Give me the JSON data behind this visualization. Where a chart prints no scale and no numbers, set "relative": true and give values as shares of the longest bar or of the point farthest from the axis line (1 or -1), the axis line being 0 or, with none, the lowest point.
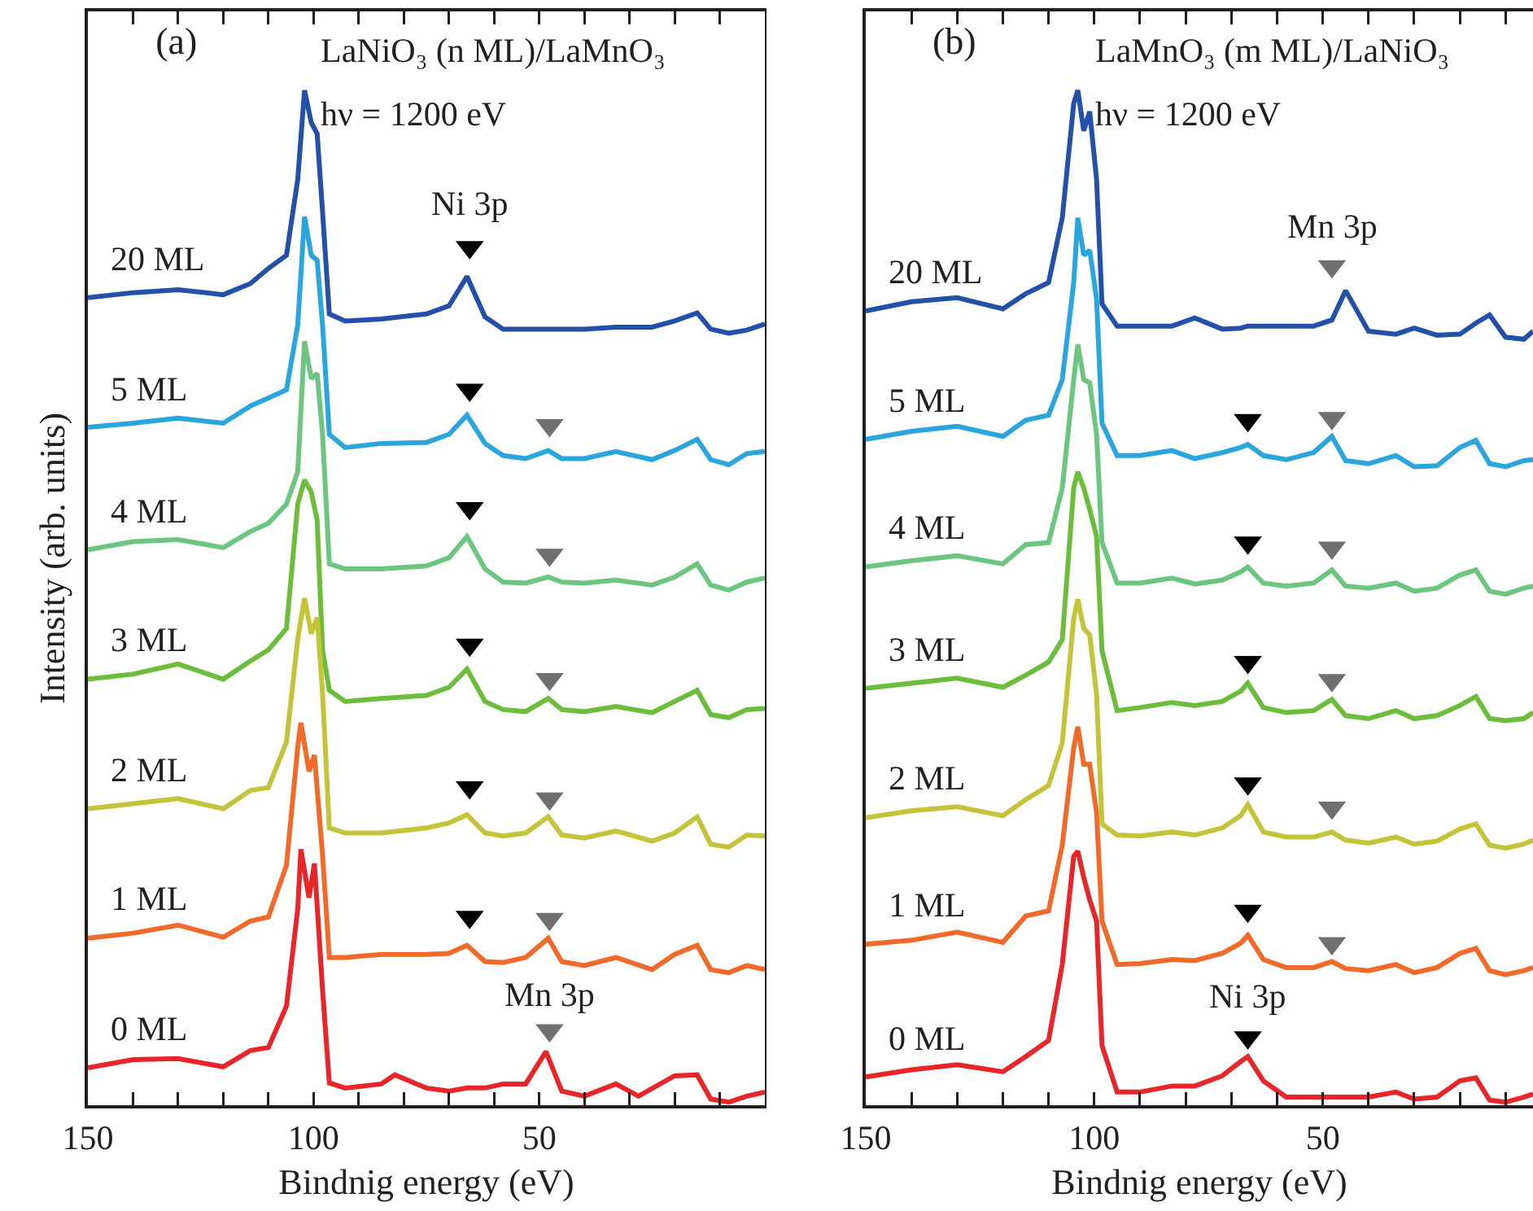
{
  "chart_data": [
    {
      "type": "line",
      "title": "(a)",
      "xlabel": "Bindnig energy (eV)",
      "ylabel": "Intensity (arb. units)",
      "relative": true,
      "grid": false,
      "line_style": "solid",
      "tick_labels": "x",
      "xlim": [
        150,
        0
      ],
      "xticks": [
        150,
        {
          "value": 140,
          "label": null
        },
        {
          "value": 130,
          "label": null
        },
        {
          "value": 120,
          "label": null
        },
        {
          "value": 110,
          "label": null
        },
        100,
        {
          "value": 90,
          "label": null
        },
        {
          "value": 80,
          "label": null
        },
        {
          "value": 70,
          "label": null
        },
        {
          "value": 60,
          "label": null
        },
        50,
        {
          "value": 40,
          "label": null
        },
        {
          "value": 30,
          "label": null
        },
        {
          "value": 20,
          "label": null
        },
        {
          "value": 10,
          "label": null
        }
      ],
      "annotations": [
        "LaNiO₃ (n ML)/LaMnO₃",
        "hν = 1200 eV",
        "Ni 3p",
        "Mn 3p"
      ],
      "x": [
        150,
        140,
        130,
        120,
        114,
        110,
        106,
        103.5,
        102,
        100.5,
        99.2,
        98,
        96.5,
        93,
        85,
        75,
        70,
        66,
        62,
        58,
        53,
        48,
        45,
        40,
        33,
        25,
        20,
        15,
        12,
        8,
        4,
        0
      ],
      "series": [
        {
          "name": "20 ML",
          "color": "#2350a8",
          "values": [
            0.795,
            0.8,
            0.803,
            0.798,
            0.809,
            0.824,
            0.837,
            0.912,
            1,
            0.968,
            0.957,
            0.88,
            0.779,
            0.772,
            0.774,
            0.779,
            0.787,
            0.816,
            0.776,
            0.764,
            0.764,
            0.764,
            0.764,
            0.764,
            0.766,
            0.766,
            0.772,
            0.78,
            0.764,
            0.76,
            0.763,
            0.769
          ]
        },
        {
          "name": "5 ML",
          "color": "#2aa5dd",
          "values": [
            0.667,
            0.671,
            0.676,
            0.671,
            0.688,
            0.696,
            0.704,
            0.768,
            0.875,
            0.837,
            0.832,
            0.768,
            0.66,
            0.647,
            0.651,
            0.652,
            0.66,
            0.679,
            0.651,
            0.639,
            0.636,
            0.644,
            0.636,
            0.636,
            0.643,
            0.635,
            0.644,
            0.655,
            0.635,
            0.63,
            0.641,
            0.643
          ]
        },
        {
          "name": "4 ML",
          "color": "#6cc680",
          "values": [
            0.546,
            0.554,
            0.556,
            0.548,
            0.564,
            0.572,
            0.591,
            0.623,
            0.752,
            0.715,
            0.72,
            0.66,
            0.532,
            0.527,
            0.527,
            0.53,
            0.538,
            0.559,
            0.527,
            0.514,
            0.513,
            0.519,
            0.514,
            0.513,
            0.516,
            0.511,
            0.519,
            0.532,
            0.511,
            0.506,
            0.514,
            0.518
          ]
        },
        {
          "name": "3 ML",
          "color": "#6cbd3c",
          "values": [
            0.418,
            0.423,
            0.433,
            0.418,
            0.436,
            0.447,
            0.468,
            0.591,
            0.615,
            0.603,
            0.575,
            0.447,
            0.407,
            0.396,
            0.399,
            0.402,
            0.41,
            0.428,
            0.396,
            0.388,
            0.386,
            0.399,
            0.388,
            0.386,
            0.391,
            0.385,
            0.396,
            0.407,
            0.383,
            0.38,
            0.388,
            0.389
          ]
        },
        {
          "name": "2 ML",
          "color": "#c4c43a",
          "values": [
            0.29,
            0.295,
            0.3,
            0.29,
            0.308,
            0.311,
            0.356,
            0.458,
            0.498,
            0.463,
            0.479,
            0.404,
            0.271,
            0.266,
            0.266,
            0.271,
            0.276,
            0.284,
            0.266,
            0.263,
            0.266,
            0.282,
            0.264,
            0.261,
            0.268,
            0.258,
            0.266,
            0.282,
            0.255,
            0.252,
            0.264,
            0.263
          ]
        },
        {
          "name": "1 ML",
          "color": "#f26a2a",
          "x": [
            150,
            140,
            130,
            120,
            114,
            110,
            106,
            103.5,
            102.8,
            101,
            99.8,
            98,
            96.5,
            93,
            85,
            75,
            70,
            66,
            62,
            58,
            53,
            48,
            45,
            40,
            33,
            25,
            20,
            15,
            12,
            8,
            4,
            0
          ],
          "values": [
            0.162,
            0.167,
            0.175,
            0.163,
            0.179,
            0.183,
            0.234,
            0.351,
            0.375,
            0.327,
            0.343,
            0.244,
            0.143,
            0.143,
            0.146,
            0.146,
            0.147,
            0.155,
            0.139,
            0.138,
            0.143,
            0.162,
            0.139,
            0.135,
            0.143,
            0.131,
            0.146,
            0.155,
            0.131,
            0.128,
            0.135,
            0.131
          ]
        },
        {
          "name": "0 ML",
          "color": "#e8262a",
          "x": [
            150,
            140,
            130,
            120,
            114,
            110,
            106,
            103.5,
            102.8,
            101,
            99.8,
            98,
            96.5,
            93,
            85,
            82,
            75,
            70,
            66,
            62,
            58,
            53,
            48.5,
            45,
            40,
            33,
            28,
            20,
            15,
            12,
            8,
            4,
            0
          ],
          "values": [
            0.034,
            0.042,
            0.043,
            0.035,
            0.051,
            0.054,
            0.095,
            0.191,
            0.25,
            0.202,
            0.236,
            0.111,
            0.019,
            0.014,
            0.018,
            0.027,
            0.014,
            0.011,
            0.014,
            0.014,
            0.018,
            0.018,
            0.05,
            0.011,
            0.006,
            0.018,
            0.006,
            0.026,
            0.027,
            0.003,
            0,
            0.006,
            0.01
          ]
        },
        {
          "type": "scatter",
          "marker": "triangle",
          "color": "#000000",
          "x": [
            65.4,
            65.4,
            65.4,
            65.4,
            65.4,
            65.4
          ],
          "values": [
            0.845,
            0.704,
            0.587,
            0.452,
            0.311,
            0.183
          ]
        },
        {
          "type": "scatter",
          "marker": "triangle",
          "color": "#707070",
          "x": [
            47.7,
            47.7,
            47.7,
            47.7,
            47.7,
            47.7
          ],
          "values": [
            0.669,
            0.541,
            0.418,
            0.3,
            0.181,
            0.071
          ]
        }
      ]
    },
    {
      "type": "line",
      "title": "(b)",
      "xlabel": "Bindnig energy (eV)",
      "relative": true,
      "grid": false,
      "line_style": "solid",
      "tick_labels": "x",
      "xlim": [
        150,
        4
      ],
      "xticks": [
        150,
        {
          "value": 140,
          "label": null
        },
        {
          "value": 130,
          "label": null
        },
        {
          "value": 120,
          "label": null
        },
        {
          "value": 110,
          "label": null
        },
        100,
        {
          "value": 90,
          "label": null
        },
        {
          "value": 80,
          "label": null
        },
        {
          "value": 70,
          "label": null
        },
        {
          "value": 60,
          "label": null
        },
        50,
        {
          "value": 40,
          "label": null
        },
        {
          "value": 30,
          "label": null
        },
        {
          "value": 20,
          "label": null
        },
        {
          "value": 10,
          "label": null
        }
      ],
      "annotations": [
        "LaMnO₃ (m ML)/LaNiO₃",
        "hν = 1200 eV",
        "Mn 3p",
        "Ni 3p"
      ],
      "x": [
        150,
        140,
        130,
        120,
        115,
        110,
        107,
        104.5,
        103.6,
        102.3,
        101,
        99.5,
        98.3,
        95,
        90,
        83,
        78,
        72,
        68,
        66.4,
        63,
        58,
        52,
        48,
        45,
        40,
        34,
        30,
        25,
        20,
        16.5,
        13.5,
        10,
        6,
        4
      ],
      "series": [
        {
          "name": "20 ML",
          "color": "#2350a8",
          "values": [
            0.782,
            0.791,
            0.795,
            0.784,
            0.799,
            0.81,
            0.874,
            0.987,
            1,
            0.96,
            0.979,
            0.912,
            0.789,
            0.767,
            0.767,
            0.767,
            0.775,
            0.764,
            0.765,
            0.767,
            0.767,
            0.767,
            0.767,
            0.773,
            0.802,
            0.762,
            0.759,
            0.765,
            0.758,
            0.759,
            0.77,
            0.778,
            0.756,
            0.754,
            0.762
          ]
        },
        {
          "name": "5 ML",
          "color": "#2aa5dd",
          "values": [
            0.655,
            0.663,
            0.668,
            0.658,
            0.674,
            0.679,
            0.714,
            0.81,
            0.874,
            0.837,
            0.842,
            0.794,
            0.671,
            0.639,
            0.639,
            0.644,
            0.636,
            0.642,
            0.647,
            0.65,
            0.639,
            0.635,
            0.642,
            0.658,
            0.634,
            0.631,
            0.639,
            0.628,
            0.629,
            0.647,
            0.654,
            0.631,
            0.628,
            0.634,
            0.635
          ]
        },
        {
          "name": "4 ML",
          "color": "#6cc680",
          "values": [
            0.529,
            0.535,
            0.54,
            0.532,
            0.551,
            0.553,
            0.607,
            0.714,
            0.749,
            0.714,
            0.711,
            0.66,
            0.553,
            0.513,
            0.513,
            0.518,
            0.512,
            0.516,
            0.524,
            0.529,
            0.513,
            0.51,
            0.513,
            0.526,
            0.51,
            0.508,
            0.513,
            0.505,
            0.508,
            0.521,
            0.526,
            0.505,
            0.502,
            0.508,
            0.51
          ]
        },
        {
          "name": "3 ML",
          "color": "#6cbd3c",
          "values": [
            0.409,
            0.414,
            0.419,
            0.41,
            0.422,
            0.435,
            0.457,
            0.607,
            0.623,
            0.607,
            0.586,
            0.559,
            0.446,
            0.387,
            0.39,
            0.395,
            0.392,
            0.396,
            0.406,
            0.414,
            0.39,
            0.385,
            0.387,
            0.398,
            0.382,
            0.379,
            0.387,
            0.379,
            0.382,
            0.392,
            0.401,
            0.379,
            0.377,
            0.379,
            0.385
          ]
        },
        {
          "name": "2 ML",
          "color": "#c4c43a",
          "values": [
            0.281,
            0.288,
            0.292,
            0.283,
            0.299,
            0.313,
            0.355,
            0.478,
            0.497,
            0.468,
            0.462,
            0.403,
            0.275,
            0.264,
            0.263,
            0.267,
            0.264,
            0.271,
            0.283,
            0.294,
            0.267,
            0.262,
            0.262,
            0.267,
            0.259,
            0.256,
            0.262,
            0.255,
            0.258,
            0.27,
            0.275,
            0.254,
            0.251,
            0.255,
            0.259
          ]
        },
        {
          "name": "1 ML",
          "color": "#f26a2a",
          "values": [
            0.156,
            0.16,
            0.168,
            0.158,
            0.184,
            0.189,
            0.254,
            0.35,
            0.371,
            0.334,
            0.334,
            0.286,
            0.179,
            0.136,
            0.137,
            0.141,
            0.14,
            0.147,
            0.157,
            0.165,
            0.141,
            0.133,
            0.133,
            0.139,
            0.132,
            0.13,
            0.136,
            0.128,
            0.133,
            0.147,
            0.152,
            0.13,
            0.126,
            0.13,
            0.133
          ]
        },
        {
          "name": "0 ML",
          "color": "#e8262a",
          "values": [
            0.025,
            0.032,
            0.037,
            0.03,
            0.045,
            0.061,
            0.136,
            0.243,
            0.248,
            0.222,
            0.2,
            0.179,
            0.056,
            0.01,
            0.01,
            0.016,
            0.016,
            0.026,
            0.04,
            0.045,
            0.021,
            0.005,
            0.005,
            0.005,
            0.005,
            0.005,
            0.01,
            0.003,
            0.005,
            0.021,
            0.024,
            0.002,
            0,
            0.005,
            0.008
          ]
        },
        {
          "type": "scatter",
          "marker": "triangle",
          "color": "#000000",
          "x": [
            66.4,
            66.4,
            66.4,
            66.4,
            66.4,
            66.4
          ],
          "values": [
            0.674,
            0.553,
            0.435,
            0.315,
            0.189,
            0.064
          ]
        },
        {
          "type": "scatter",
          "marker": "triangle",
          "color": "#707070",
          "x": [
            48,
            48,
            48,
            48,
            48,
            48
          ],
          "values": [
            0.826,
            0.676,
            0.548,
            0.417,
            0.291,
            0.157
          ]
        }
      ]
    }
  ]
}
